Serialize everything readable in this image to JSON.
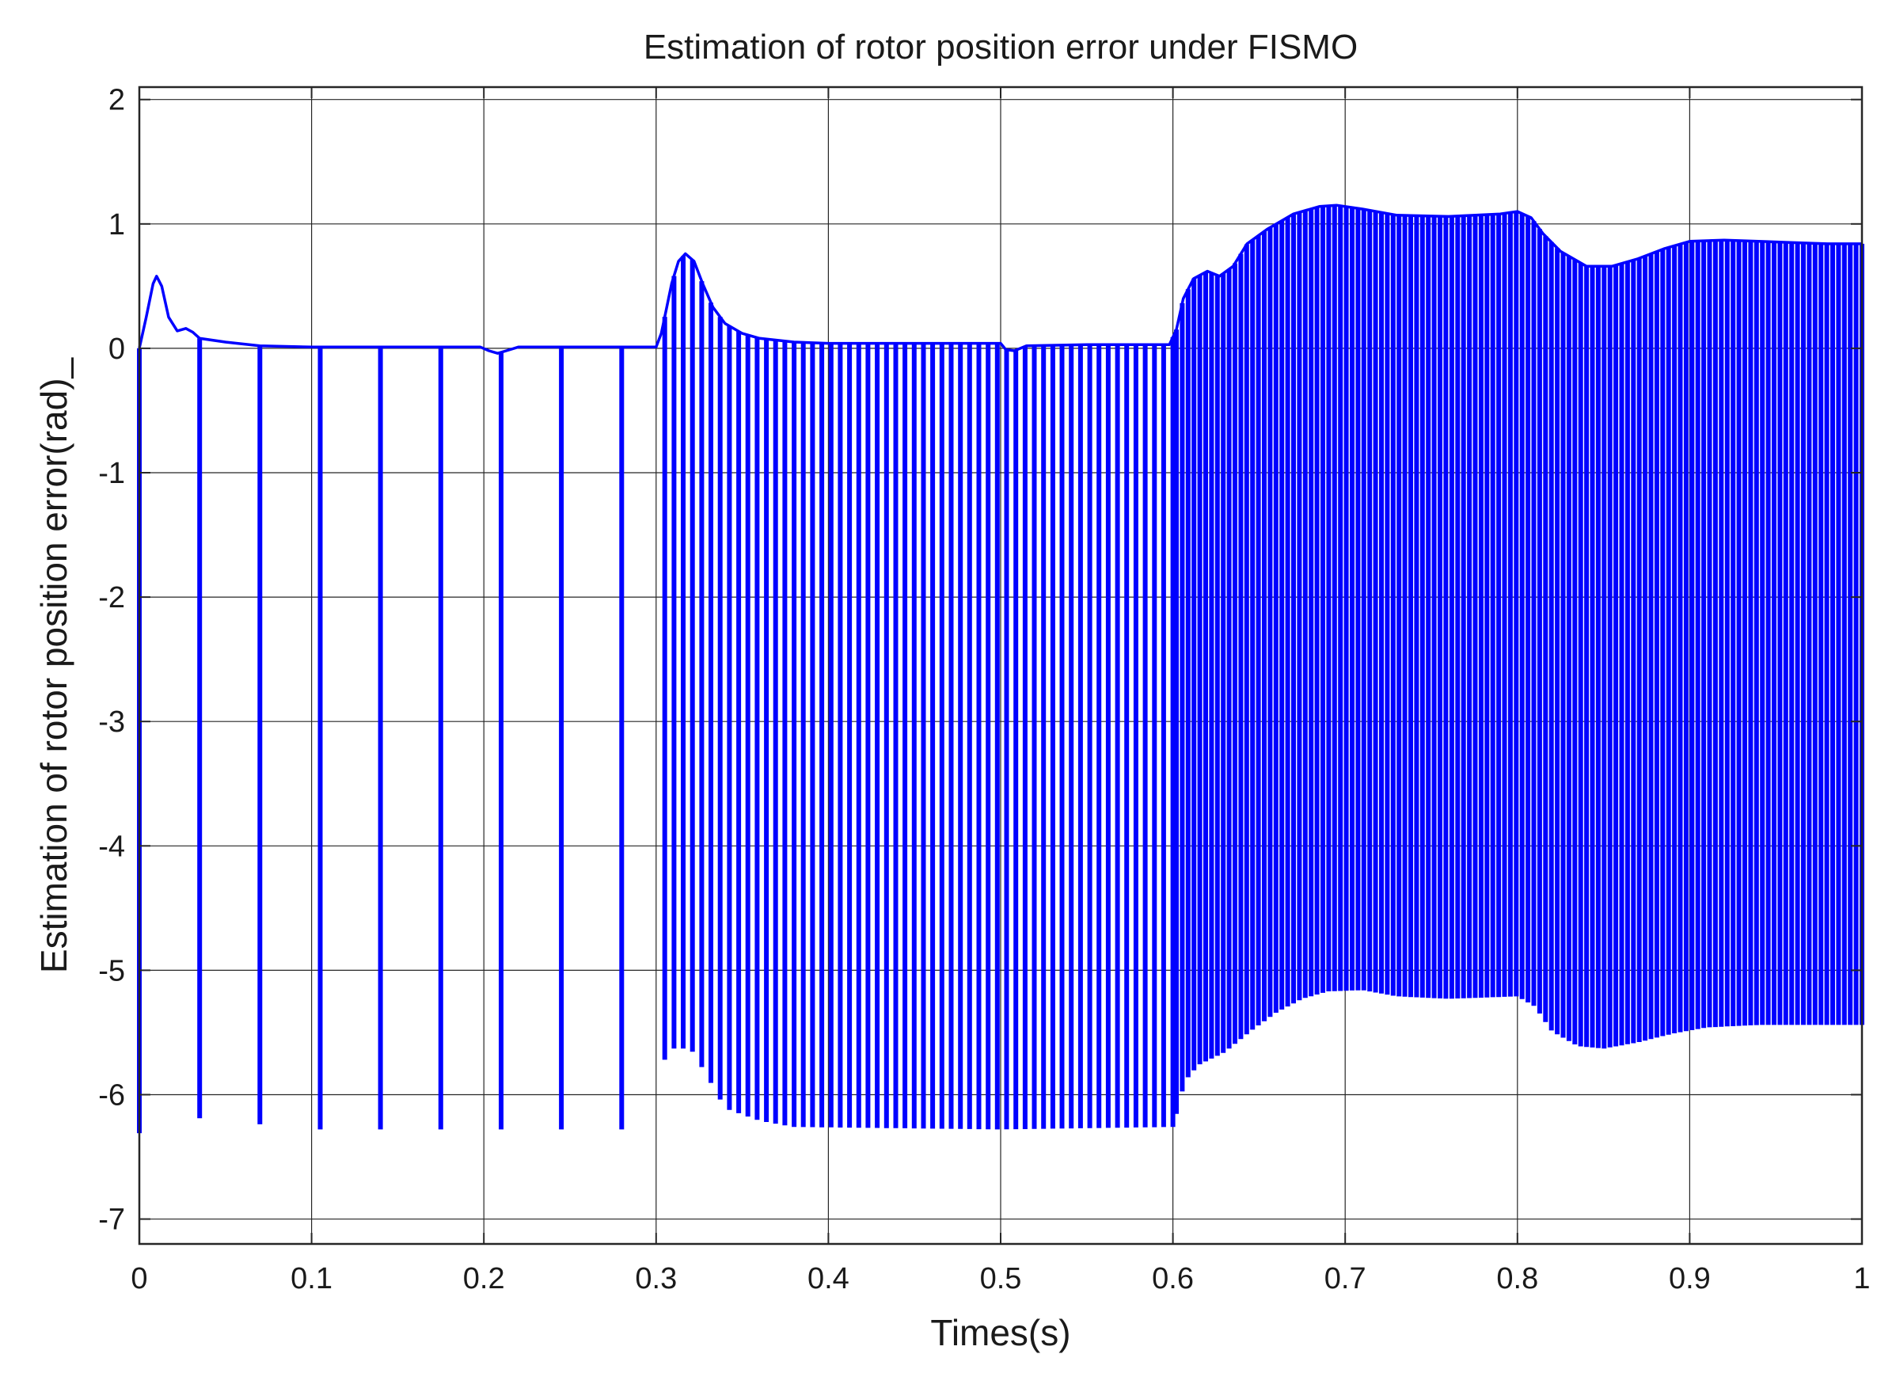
{
  "chart_data": {
    "type": "line",
    "title": "Estimation of rotor position error under FISMO",
    "xlabel": "Times(s)",
    "ylabel": "Estimation of rotor position error(rad)_",
    "xlim": [
      0,
      1
    ],
    "ylim": [
      -7.2,
      2.1
    ],
    "xticks": [
      0,
      0.1,
      0.2,
      0.3,
      0.4,
      0.5,
      0.6,
      0.7,
      0.8,
      0.9,
      1
    ],
    "xtick_labels": [
      "0",
      "0.1",
      "0.2",
      "0.3",
      "0.4",
      "0.5",
      "0.6",
      "0.7",
      "0.8",
      "0.9",
      "1"
    ],
    "yticks": [
      2,
      1,
      0,
      -1,
      -2,
      -3,
      -4,
      -5,
      -6,
      -7
    ],
    "ytick_labels": [
      "2",
      "1",
      "0",
      "-1",
      "-2",
      "-3",
      "-4",
      "-5",
      "-6",
      "-7"
    ],
    "grid": true,
    "line_color": "#0000ff",
    "upper_envelope": [
      [
        0,
        0
      ],
      [
        0.004,
        0.25
      ],
      [
        0.008,
        0.52
      ],
      [
        0.01,
        0.58
      ],
      [
        0.013,
        0.5
      ],
      [
        0.017,
        0.25
      ],
      [
        0.022,
        0.14
      ],
      [
        0.027,
        0.16
      ],
      [
        0.031,
        0.13
      ],
      [
        0.035,
        0.08
      ],
      [
        0.05,
        0.05
      ],
      [
        0.07,
        0.02
      ],
      [
        0.1,
        0.01
      ],
      [
        0.198,
        0.01
      ],
      [
        0.203,
        -0.02
      ],
      [
        0.208,
        -0.04
      ],
      [
        0.213,
        -0.02
      ],
      [
        0.22,
        0.01
      ],
      [
        0.3,
        0.01
      ],
      [
        0.303,
        0.12
      ],
      [
        0.306,
        0.32
      ],
      [
        0.309,
        0.52
      ],
      [
        0.313,
        0.7
      ],
      [
        0.317,
        0.76
      ],
      [
        0.322,
        0.7
      ],
      [
        0.327,
        0.52
      ],
      [
        0.333,
        0.33
      ],
      [
        0.34,
        0.2
      ],
      [
        0.35,
        0.12
      ],
      [
        0.36,
        0.08
      ],
      [
        0.38,
        0.05
      ],
      [
        0.4,
        0.04
      ],
      [
        0.45,
        0.04
      ],
      [
        0.5,
        0.04
      ],
      [
        0.503,
        -0.01
      ],
      [
        0.508,
        -0.02
      ],
      [
        0.515,
        0.02
      ],
      [
        0.55,
        0.03
      ],
      [
        0.598,
        0.03
      ],
      [
        0.602,
        0.15
      ],
      [
        0.606,
        0.4
      ],
      [
        0.612,
        0.56
      ],
      [
        0.62,
        0.62
      ],
      [
        0.627,
        0.58
      ],
      [
        0.635,
        0.66
      ],
      [
        0.643,
        0.84
      ],
      [
        0.655,
        0.96
      ],
      [
        0.67,
        1.08
      ],
      [
        0.685,
        1.14
      ],
      [
        0.695,
        1.15
      ],
      [
        0.71,
        1.12
      ],
      [
        0.73,
        1.07
      ],
      [
        0.76,
        1.06
      ],
      [
        0.79,
        1.08
      ],
      [
        0.8,
        1.1
      ],
      [
        0.808,
        1.05
      ],
      [
        0.815,
        0.92
      ],
      [
        0.825,
        0.78
      ],
      [
        0.84,
        0.66
      ],
      [
        0.855,
        0.66
      ],
      [
        0.87,
        0.72
      ],
      [
        0.885,
        0.8
      ],
      [
        0.9,
        0.86
      ],
      [
        0.92,
        0.87
      ],
      [
        0.94,
        0.86
      ],
      [
        0.96,
        0.85
      ],
      [
        0.98,
        0.84
      ],
      [
        1,
        0.84
      ]
    ],
    "lower_envelope": [
      [
        0,
        -6.3
      ],
      [
        0.035,
        -6.18
      ],
      [
        0.1,
        -6.27
      ],
      [
        0.28,
        -6.27
      ],
      [
        0.3,
        -5.8
      ],
      [
        0.31,
        -5.62
      ],
      [
        0.32,
        -5.62
      ],
      [
        0.33,
        -5.85
      ],
      [
        0.34,
        -6.1
      ],
      [
        0.36,
        -6.2
      ],
      [
        0.38,
        -6.25
      ],
      [
        0.5,
        -6.27
      ],
      [
        0.6,
        -6.25
      ],
      [
        0.607,
        -5.88
      ],
      [
        0.615,
        -5.75
      ],
      [
        0.63,
        -5.65
      ],
      [
        0.645,
        -5.48
      ],
      [
        0.66,
        -5.33
      ],
      [
        0.675,
        -5.22
      ],
      [
        0.69,
        -5.16
      ],
      [
        0.71,
        -5.15
      ],
      [
        0.73,
        -5.2
      ],
      [
        0.76,
        -5.22
      ],
      [
        0.8,
        -5.2
      ],
      [
        0.81,
        -5.28
      ],
      [
        0.82,
        -5.48
      ],
      [
        0.835,
        -5.6
      ],
      [
        0.85,
        -5.62
      ],
      [
        0.87,
        -5.57
      ],
      [
        0.89,
        -5.5
      ],
      [
        0.91,
        -5.45
      ],
      [
        0.94,
        -5.43
      ],
      [
        0.97,
        -5.43
      ],
      [
        1,
        -5.43
      ]
    ],
    "spike_groups": [
      {
        "x_start": 0.035,
        "x_end": 0.28,
        "count": 8
      },
      {
        "x_start": 0.305,
        "x_end": 0.6,
        "count": 56
      },
      {
        "x_start": 0.602,
        "x_end": 1.0,
        "count": 118
      }
    ],
    "extra_spikes": [
      0.0
    ]
  }
}
